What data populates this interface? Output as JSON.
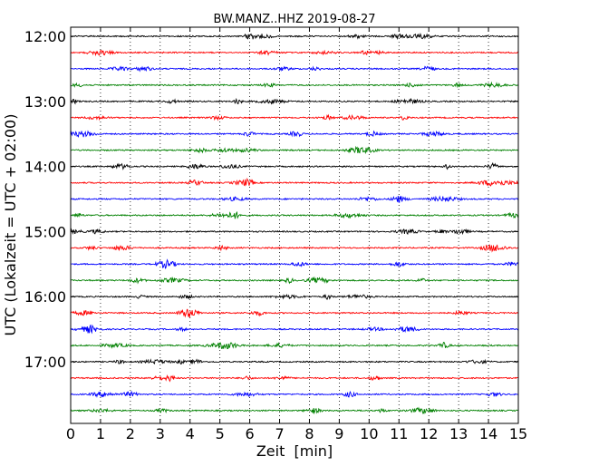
{
  "chart_data": {
    "type": "line",
    "title": "BW.MANZ..HHZ 2019-08-27",
    "xlabel": "Zeit  [min]",
    "ylabel": "UTC (Lokalzeit = UTC + 02:00)",
    "xlim": [
      0,
      15
    ],
    "x_ticks": [
      "0",
      "1",
      "2",
      "3",
      "4",
      "5",
      "6",
      "7",
      "8",
      "9",
      "10",
      "11",
      "12",
      "13",
      "14",
      "15"
    ],
    "y_tick_labels": [
      "12:00",
      "13:00",
      "14:00",
      "15:00",
      "16:00",
      "17:00"
    ],
    "grid": "vertical dotted lines at every minute",
    "trace_interval_minutes": 15,
    "traces": [
      {
        "start": "12:00",
        "color": "#000000"
      },
      {
        "start": "12:15",
        "color": "#ff0000"
      },
      {
        "start": "12:30",
        "color": "#0000ff"
      },
      {
        "start": "12:45",
        "color": "#008000"
      },
      {
        "start": "13:00",
        "color": "#000000"
      },
      {
        "start": "13:15",
        "color": "#ff0000"
      },
      {
        "start": "13:30",
        "color": "#0000ff"
      },
      {
        "start": "13:45",
        "color": "#008000"
      },
      {
        "start": "14:00",
        "color": "#000000"
      },
      {
        "start": "14:15",
        "color": "#ff0000"
      },
      {
        "start": "14:30",
        "color": "#0000ff"
      },
      {
        "start": "14:45",
        "color": "#008000"
      },
      {
        "start": "15:00",
        "color": "#000000"
      },
      {
        "start": "15:15",
        "color": "#ff0000"
      },
      {
        "start": "15:30",
        "color": "#0000ff"
      },
      {
        "start": "15:45",
        "color": "#008000"
      },
      {
        "start": "16:00",
        "color": "#000000"
      },
      {
        "start": "16:15",
        "color": "#ff0000"
      },
      {
        "start": "16:30",
        "color": "#0000ff"
      },
      {
        "start": "16:45",
        "color": "#008000"
      },
      {
        "start": "17:00",
        "color": "#000000"
      },
      {
        "start": "17:15",
        "color": "#ff0000"
      },
      {
        "start": "17:30",
        "color": "#0000ff"
      },
      {
        "start": "17:45",
        "color": "#008000"
      }
    ]
  }
}
